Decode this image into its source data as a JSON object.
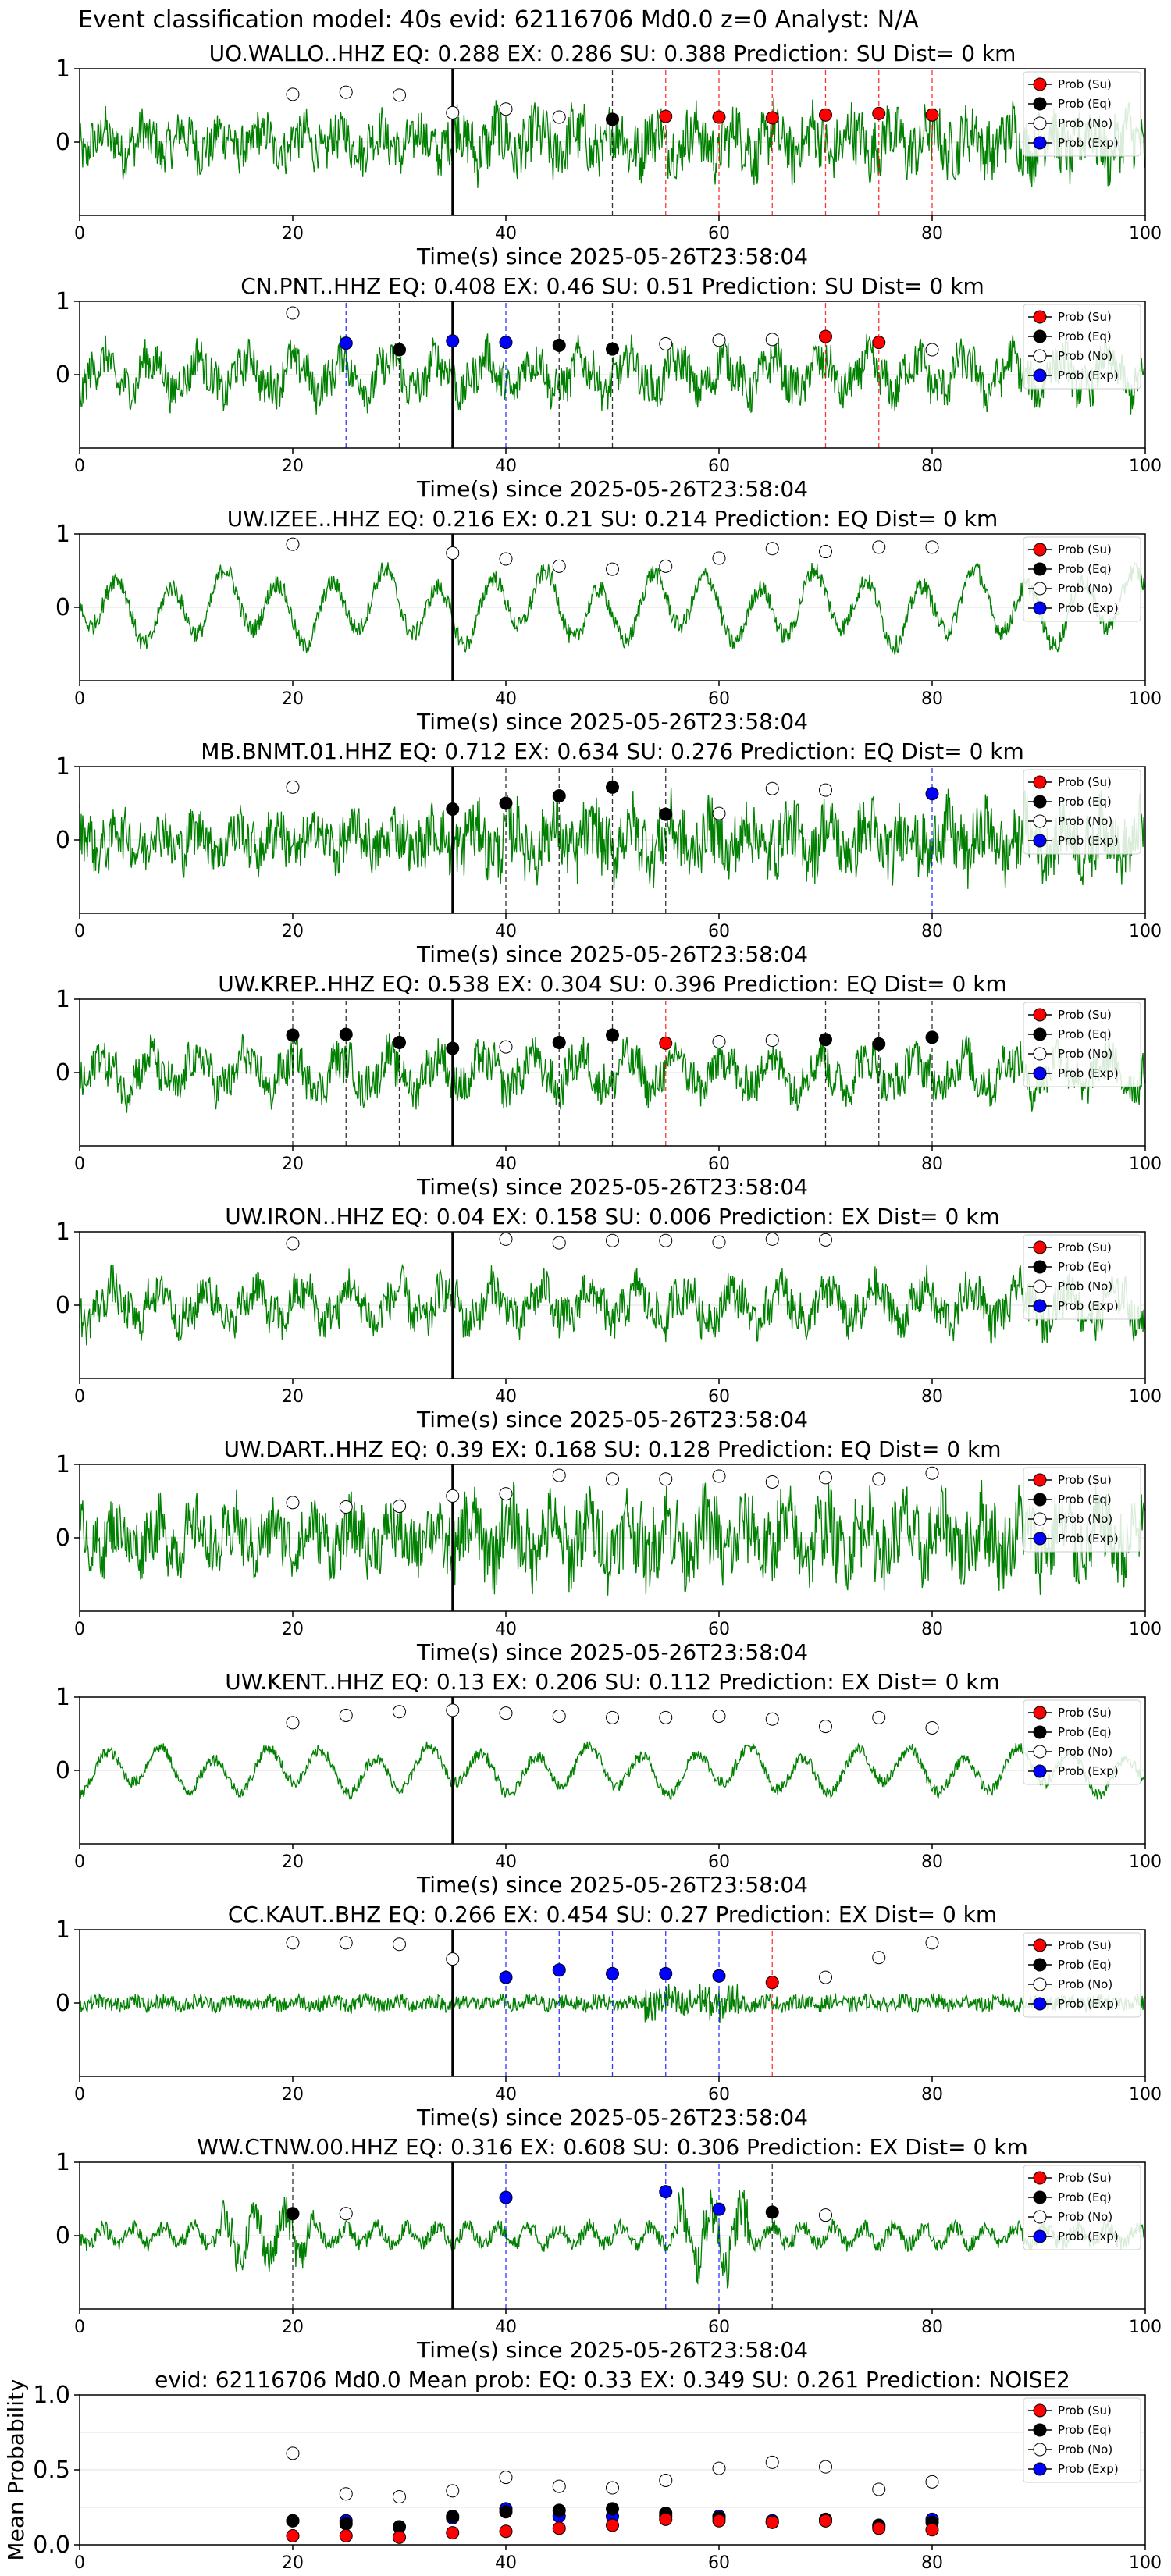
{
  "figure": {
    "title": "Event classification model: 40s evid: 62116706 Md0.0 z=0 Analyst: N/A",
    "colors": {
      "trace": "#008000",
      "su": "#ff0000",
      "eq": "#000000",
      "no": "#ffffff",
      "exp": "#0000ff",
      "axis": "#000000",
      "grid": "#e0e0e0"
    },
    "legend_labels": [
      "Prob (Su)",
      "Prob (Eq)",
      "Prob (No)",
      "Prob (Exp)"
    ]
  },
  "chart_data": [
    {
      "type": "line",
      "station": "UO.WALLO..HHZ",
      "title": "UO.WALLO..HHZ   EQ: 0.288  EX: 0.286  SU: 0.388   Prediction: SU    Dist= 0 km",
      "xlabel": "Time(s) since 2025-05-26T23:58:04",
      "xlim": [
        0,
        100
      ],
      "ylim": [
        -1,
        1
      ],
      "xticks": [
        0,
        20,
        40,
        60,
        80,
        100
      ],
      "yticks": [
        0,
        1
      ],
      "legend": "top-right",
      "waveform": {
        "style": "high-frequency",
        "amplitude": 0.55
      },
      "pick_line": 35,
      "points": [
        {
          "x": 20,
          "y": 0.65,
          "class": "no"
        },
        {
          "x": 25,
          "y": 0.68,
          "class": "no"
        },
        {
          "x": 30,
          "y": 0.64,
          "class": "no"
        },
        {
          "x": 35,
          "y": 0.4,
          "class": "no"
        },
        {
          "x": 40,
          "y": 0.45,
          "class": "no"
        },
        {
          "x": 45,
          "y": 0.34,
          "class": "no"
        },
        {
          "x": 50,
          "y": 0.31,
          "class": "eq"
        },
        {
          "x": 55,
          "y": 0.35,
          "class": "su"
        },
        {
          "x": 60,
          "y": 0.34,
          "class": "su"
        },
        {
          "x": 65,
          "y": 0.33,
          "class": "su"
        },
        {
          "x": 70,
          "y": 0.37,
          "class": "su"
        },
        {
          "x": 75,
          "y": 0.39,
          "class": "su"
        },
        {
          "x": 80,
          "y": 0.37,
          "class": "su"
        }
      ]
    },
    {
      "type": "line",
      "station": "CN.PNT..HHZ",
      "title": "CN.PNT..HHZ   EQ: 0.408  EX: 0.46  SU: 0.51   Prediction: SU    Dist= 0 km",
      "xlabel": "Time(s) since 2025-05-26T23:58:04",
      "xlim": [
        0,
        100
      ],
      "ylim": [
        -1,
        1
      ],
      "xticks": [
        0,
        20,
        40,
        60,
        80,
        100
      ],
      "yticks": [
        0,
        1
      ],
      "legend": "top-right",
      "waveform": {
        "style": "mixed",
        "amplitude": 0.6
      },
      "pick_line": 35,
      "points": [
        {
          "x": 20,
          "y": 0.84,
          "class": "no"
        },
        {
          "x": 25,
          "y": 0.43,
          "class": "exp"
        },
        {
          "x": 30,
          "y": 0.34,
          "class": "eq"
        },
        {
          "x": 35,
          "y": 0.46,
          "class": "exp"
        },
        {
          "x": 40,
          "y": 0.44,
          "class": "exp"
        },
        {
          "x": 45,
          "y": 0.4,
          "class": "eq"
        },
        {
          "x": 50,
          "y": 0.35,
          "class": "eq"
        },
        {
          "x": 55,
          "y": 0.42,
          "class": "no"
        },
        {
          "x": 60,
          "y": 0.47,
          "class": "no"
        },
        {
          "x": 65,
          "y": 0.48,
          "class": "no"
        },
        {
          "x": 70,
          "y": 0.52,
          "class": "su"
        },
        {
          "x": 75,
          "y": 0.44,
          "class": "su"
        },
        {
          "x": 80,
          "y": 0.34,
          "class": "no"
        }
      ]
    },
    {
      "type": "line",
      "station": "UW.IZEE..HHZ",
      "title": "UW.IZEE..HHZ   EQ: 0.216  EX: 0.21  SU: 0.214   Prediction: EQ    Dist= 0 km",
      "xlabel": "Time(s) since 2025-05-26T23:58:04",
      "xlim": [
        0,
        100
      ],
      "ylim": [
        -1,
        1
      ],
      "xticks": [
        0,
        20,
        40,
        60,
        80,
        100
      ],
      "yticks": [
        0,
        1
      ],
      "legend": "top-right",
      "waveform": {
        "style": "low-frequency",
        "amplitude": 0.7
      },
      "pick_line": 35,
      "points": [
        {
          "x": 20,
          "y": 0.86,
          "class": "no"
        },
        {
          "x": 35,
          "y": 0.74,
          "class": "no"
        },
        {
          "x": 40,
          "y": 0.66,
          "class": "no"
        },
        {
          "x": 45,
          "y": 0.56,
          "class": "no"
        },
        {
          "x": 50,
          "y": 0.52,
          "class": "no"
        },
        {
          "x": 55,
          "y": 0.56,
          "class": "no"
        },
        {
          "x": 60,
          "y": 0.67,
          "class": "no"
        },
        {
          "x": 65,
          "y": 0.8,
          "class": "no"
        },
        {
          "x": 70,
          "y": 0.76,
          "class": "no"
        },
        {
          "x": 75,
          "y": 0.82,
          "class": "no"
        },
        {
          "x": 80,
          "y": 0.82,
          "class": "no"
        }
      ]
    },
    {
      "type": "line",
      "station": "MB.BNMT.01.HHZ",
      "title": "MB.BNMT.01.HHZ   EQ: 0.712  EX: 0.634  SU: 0.276   Prediction: EQ    Dist= 0 km",
      "xlabel": "Time(s) since 2025-05-26T23:58:04",
      "xlim": [
        0,
        100
      ],
      "ylim": [
        -1,
        1
      ],
      "xticks": [
        0,
        20,
        40,
        60,
        80,
        100
      ],
      "yticks": [
        0,
        1
      ],
      "legend": "top-right",
      "waveform": {
        "style": "high-frequency",
        "amplitude": 0.6
      },
      "pick_line": 35,
      "points": [
        {
          "x": 20,
          "y": 0.72,
          "class": "no"
        },
        {
          "x": 35,
          "y": 0.42,
          "class": "eq"
        },
        {
          "x": 40,
          "y": 0.5,
          "class": "eq"
        },
        {
          "x": 45,
          "y": 0.6,
          "class": "eq"
        },
        {
          "x": 50,
          "y": 0.72,
          "class": "eq"
        },
        {
          "x": 55,
          "y": 0.35,
          "class": "eq"
        },
        {
          "x": 60,
          "y": 0.36,
          "class": "no"
        },
        {
          "x": 65,
          "y": 0.7,
          "class": "no"
        },
        {
          "x": 70,
          "y": 0.68,
          "class": "no"
        },
        {
          "x": 80,
          "y": 0.63,
          "class": "exp"
        }
      ]
    },
    {
      "type": "line",
      "station": "UW.KREP..HHZ",
      "title": "UW.KREP..HHZ   EQ: 0.538  EX: 0.304  SU: 0.396   Prediction: EQ    Dist= 0 km",
      "xlabel": "Time(s) since 2025-05-26T23:58:04",
      "xlim": [
        0,
        100
      ],
      "ylim": [
        -1,
        1
      ],
      "xticks": [
        0,
        20,
        40,
        60,
        80,
        100
      ],
      "yticks": [
        0,
        1
      ],
      "legend": "top-right",
      "waveform": {
        "style": "mixed",
        "amplitude": 0.6
      },
      "pick_line": 35,
      "points": [
        {
          "x": 20,
          "y": 0.51,
          "class": "eq"
        },
        {
          "x": 25,
          "y": 0.52,
          "class": "eq"
        },
        {
          "x": 30,
          "y": 0.41,
          "class": "eq"
        },
        {
          "x": 35,
          "y": 0.33,
          "class": "eq"
        },
        {
          "x": 40,
          "y": 0.35,
          "class": "no"
        },
        {
          "x": 45,
          "y": 0.41,
          "class": "eq"
        },
        {
          "x": 50,
          "y": 0.51,
          "class": "eq"
        },
        {
          "x": 55,
          "y": 0.4,
          "class": "su"
        },
        {
          "x": 60,
          "y": 0.42,
          "class": "no"
        },
        {
          "x": 65,
          "y": 0.44,
          "class": "no"
        },
        {
          "x": 70,
          "y": 0.45,
          "class": "eq"
        },
        {
          "x": 75,
          "y": 0.39,
          "class": "eq"
        },
        {
          "x": 80,
          "y": 0.48,
          "class": "eq"
        }
      ]
    },
    {
      "type": "line",
      "station": "UW.IRON..HHZ",
      "title": "UW.IRON..HHZ   EQ: 0.04  EX: 0.158  SU: 0.006   Prediction: EX    Dist= 0 km",
      "xlabel": "Time(s) since 2025-05-26T23:58:04",
      "xlim": [
        0,
        100
      ],
      "ylim": [
        -1,
        1
      ],
      "xticks": [
        0,
        20,
        40,
        60,
        80,
        100
      ],
      "yticks": [
        0,
        1
      ],
      "legend": "top-right",
      "waveform": {
        "style": "mixed",
        "amplitude": 0.6
      },
      "pick_line": 35,
      "points": [
        {
          "x": 20,
          "y": 0.84,
          "class": "no"
        },
        {
          "x": 40,
          "y": 0.9,
          "class": "no"
        },
        {
          "x": 45,
          "y": 0.85,
          "class": "no"
        },
        {
          "x": 50,
          "y": 0.88,
          "class": "no"
        },
        {
          "x": 55,
          "y": 0.88,
          "class": "no"
        },
        {
          "x": 60,
          "y": 0.86,
          "class": "no"
        },
        {
          "x": 65,
          "y": 0.9,
          "class": "no"
        },
        {
          "x": 70,
          "y": 0.89,
          "class": "no"
        }
      ]
    },
    {
      "type": "line",
      "station": "UW.DART..HHZ",
      "title": "UW.DART..HHZ   EQ: 0.39  EX: 0.168  SU: 0.128   Prediction: EQ    Dist= 0 km",
      "xlabel": "Time(s) since 2025-05-26T23:58:04",
      "xlim": [
        0,
        100
      ],
      "ylim": [
        -1,
        1
      ],
      "xticks": [
        0,
        20,
        40,
        60,
        80,
        100
      ],
      "yticks": [
        0,
        1
      ],
      "legend": "top-right",
      "waveform": {
        "style": "high-frequency",
        "amplitude": 0.7
      },
      "pick_line": 35,
      "points": [
        {
          "x": 20,
          "y": 0.48,
          "class": "no"
        },
        {
          "x": 25,
          "y": 0.42,
          "class": "no"
        },
        {
          "x": 30,
          "y": 0.43,
          "class": "no"
        },
        {
          "x": 35,
          "y": 0.57,
          "class": "no"
        },
        {
          "x": 40,
          "y": 0.6,
          "class": "no"
        },
        {
          "x": 45,
          "y": 0.85,
          "class": "no"
        },
        {
          "x": 50,
          "y": 0.8,
          "class": "no"
        },
        {
          "x": 55,
          "y": 0.8,
          "class": "no"
        },
        {
          "x": 60,
          "y": 0.84,
          "class": "no"
        },
        {
          "x": 65,
          "y": 0.76,
          "class": "no"
        },
        {
          "x": 70,
          "y": 0.82,
          "class": "no"
        },
        {
          "x": 75,
          "y": 0.8,
          "class": "no"
        },
        {
          "x": 80,
          "y": 0.88,
          "class": "no"
        }
      ]
    },
    {
      "type": "line",
      "station": "UW.KENT..HHZ",
      "title": "UW.KENT..HHZ   EQ: 0.13  EX: 0.206  SU: 0.112   Prediction: EX    Dist= 0 km",
      "xlabel": "Time(s) since 2025-05-26T23:58:04",
      "xlim": [
        0,
        100
      ],
      "ylim": [
        -1,
        1
      ],
      "xticks": [
        0,
        20,
        40,
        60,
        80,
        100
      ],
      "yticks": [
        0,
        1
      ],
      "legend": "top-right",
      "waveform": {
        "style": "low-frequency",
        "amplitude": 0.45
      },
      "pick_line": 35,
      "points": [
        {
          "x": 20,
          "y": 0.65,
          "class": "no"
        },
        {
          "x": 25,
          "y": 0.75,
          "class": "no"
        },
        {
          "x": 30,
          "y": 0.8,
          "class": "no"
        },
        {
          "x": 35,
          "y": 0.82,
          "class": "no"
        },
        {
          "x": 40,
          "y": 0.78,
          "class": "no"
        },
        {
          "x": 45,
          "y": 0.74,
          "class": "no"
        },
        {
          "x": 50,
          "y": 0.72,
          "class": "no"
        },
        {
          "x": 55,
          "y": 0.72,
          "class": "no"
        },
        {
          "x": 60,
          "y": 0.74,
          "class": "no"
        },
        {
          "x": 65,
          "y": 0.7,
          "class": "no"
        },
        {
          "x": 70,
          "y": 0.6,
          "class": "no"
        },
        {
          "x": 75,
          "y": 0.72,
          "class": "no"
        },
        {
          "x": 80,
          "y": 0.58,
          "class": "no"
        }
      ]
    },
    {
      "type": "line",
      "station": "CC.KAUT..BHZ",
      "title": "CC.KAUT..BHZ   EQ: 0.266  EX: 0.454  SU: 0.27   Prediction: EX    Dist= 0 km",
      "xlabel": "Time(s) since 2025-05-26T23:58:04",
      "xlim": [
        0,
        100
      ],
      "ylim": [
        -1,
        1
      ],
      "xticks": [
        0,
        20,
        40,
        60,
        80,
        100
      ],
      "yticks": [
        0,
        1
      ],
      "legend": "top-right",
      "waveform": {
        "style": "low-amplitude",
        "amplitude": 0.3
      },
      "pick_line": 35,
      "points": [
        {
          "x": 20,
          "y": 0.82,
          "class": "no"
        },
        {
          "x": 25,
          "y": 0.82,
          "class": "no"
        },
        {
          "x": 30,
          "y": 0.8,
          "class": "no"
        },
        {
          "x": 35,
          "y": 0.6,
          "class": "no"
        },
        {
          "x": 40,
          "y": 0.35,
          "class": "exp"
        },
        {
          "x": 45,
          "y": 0.45,
          "class": "exp"
        },
        {
          "x": 50,
          "y": 0.4,
          "class": "exp"
        },
        {
          "x": 55,
          "y": 0.4,
          "class": "exp"
        },
        {
          "x": 60,
          "y": 0.37,
          "class": "exp"
        },
        {
          "x": 65,
          "y": 0.28,
          "class": "su"
        },
        {
          "x": 70,
          "y": 0.35,
          "class": "no"
        },
        {
          "x": 75,
          "y": 0.62,
          "class": "no"
        },
        {
          "x": 80,
          "y": 0.82,
          "class": "no"
        }
      ]
    },
    {
      "type": "line",
      "station": "WW.CTNW.00.HHZ",
      "title": "WW.CTNW.00.HHZ   EQ: 0.316  EX: 0.608  SU: 0.306   Prediction: EX    Dist= 0 km",
      "xlabel": "Time(s) since 2025-05-26T23:58:04",
      "xlim": [
        0,
        100
      ],
      "ylim": [
        -1,
        1
      ],
      "xticks": [
        0,
        20,
        40,
        60,
        80,
        100
      ],
      "yticks": [
        0,
        1
      ],
      "legend": "top-right",
      "waveform": {
        "style": "burst",
        "amplitude": 0.35
      },
      "pick_line": 35,
      "points": [
        {
          "x": 20,
          "y": 0.3,
          "class": "eq"
        },
        {
          "x": 25,
          "y": 0.3,
          "class": "no"
        },
        {
          "x": 40,
          "y": 0.52,
          "class": "exp"
        },
        {
          "x": 55,
          "y": 0.6,
          "class": "exp"
        },
        {
          "x": 60,
          "y": 0.36,
          "class": "exp"
        },
        {
          "x": 65,
          "y": 0.32,
          "class": "eq"
        },
        {
          "x": 70,
          "y": 0.28,
          "class": "no"
        }
      ]
    },
    {
      "type": "scatter",
      "title": "evid: 62116706   Md0.0   Mean prob:   EQ: 0.33  EX: 0.349  SU: 0.261   Prediction: NOISE2",
      "xlabel": "",
      "ylabel": "Mean Probability",
      "xlim": [
        0,
        100
      ],
      "ylim": [
        0,
        1
      ],
      "xticks": [
        0,
        20,
        40,
        60,
        80,
        100
      ],
      "yticks": [
        0.0,
        0.5,
        1.0
      ],
      "legend": "top-right",
      "x": [
        20,
        25,
        30,
        35,
        40,
        45,
        50,
        55,
        60,
        65,
        70,
        75,
        80
      ],
      "series": [
        {
          "name": "Prob (No)",
          "class": "no",
          "values": [
            0.61,
            0.34,
            0.32,
            0.36,
            0.45,
            0.39,
            0.38,
            0.43,
            0.51,
            0.55,
            0.52,
            0.37,
            0.42
          ]
        },
        {
          "name": "Prob (Exp)",
          "class": "exp",
          "values": [
            0.16,
            0.16,
            0.12,
            0.18,
            0.24,
            0.19,
            0.19,
            0.19,
            0.19,
            0.16,
            0.16,
            0.12,
            0.17
          ]
        },
        {
          "name": "Prob (Eq)",
          "class": "eq",
          "values": [
            0.16,
            0.14,
            0.12,
            0.19,
            0.22,
            0.23,
            0.24,
            0.21,
            0.18,
            0.15,
            0.17,
            0.13,
            0.15
          ]
        },
        {
          "name": "Prob (Su)",
          "class": "su",
          "values": [
            0.06,
            0.06,
            0.05,
            0.08,
            0.09,
            0.11,
            0.13,
            0.17,
            0.16,
            0.15,
            0.16,
            0.11,
            0.1
          ]
        }
      ]
    }
  ]
}
